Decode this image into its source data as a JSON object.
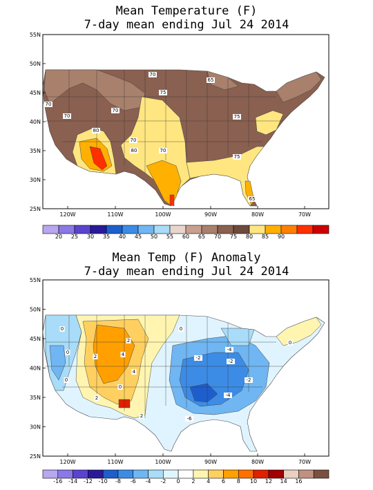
{
  "maps": [
    {
      "title_line1": "Mean Temperature (F)",
      "title_line2": "7-day mean ending Jul 24 2014",
      "lat_labels": [
        "55N",
        "50N",
        "45N",
        "40N",
        "35N",
        "30N",
        "25N"
      ],
      "lon_labels": [
        "120W",
        "110W",
        "100W",
        "90W",
        "80W",
        "70W"
      ],
      "colorbar": {
        "colors": [
          "#b8a6f0",
          "#8a78e6",
          "#5a44cf",
          "#2a1a9a",
          "#1e5ecc",
          "#3c8ce6",
          "#6fb6f2",
          "#a8dcf8",
          "#e8d6cc",
          "#c9a090",
          "#a8806c",
          "#8a6050",
          "#6e4a3c",
          "#ffe680",
          "#ffb000",
          "#ff8000",
          "#ff3000",
          "#cc0000"
        ],
        "labels": [
          "20",
          "25",
          "30",
          "35",
          "40",
          "45",
          "50",
          "55",
          "60",
          "65",
          "70",
          "75",
          "80",
          "85",
          "90"
        ]
      },
      "contour_labels": [
        "70",
        "65",
        "70",
        "75",
        "70",
        "70",
        "80",
        "70",
        "75",
        "80",
        "70",
        "75",
        "65"
      ]
    },
    {
      "title_line1": "Mean Temp (F) Anomaly",
      "title_line2": "7-day mean ending Jul 24 2014",
      "lat_labels": [
        "55N",
        "50N",
        "45N",
        "40N",
        "35N",
        "30N",
        "25N"
      ],
      "lon_labels": [
        "120W",
        "110W",
        "100W",
        "90W",
        "80W",
        "70W"
      ],
      "colorbar": {
        "colors": [
          "#b8a6f0",
          "#8a78e6",
          "#5a44cf",
          "#2a1a9a",
          "#1e5ecc",
          "#3c8ce6",
          "#6fb6f2",
          "#a8dcf8",
          "#e0f4ff",
          "#ffffff",
          "#fff5b0",
          "#ffd060",
          "#ffa000",
          "#ff7000",
          "#e02000",
          "#a00000",
          "#e8d0c0",
          "#c09080",
          "#7a5040"
        ],
        "labels": [
          "-16",
          "-14",
          "-12",
          "-10",
          "-8",
          "-6",
          "-4",
          "-2",
          "0",
          "2",
          "4",
          "6",
          "8",
          "10",
          "12",
          "14",
          "16"
        ]
      },
      "contour_labels": [
        "0",
        "0",
        "0",
        "2",
        "4",
        "4",
        "2",
        "0",
        "2",
        "-2",
        "-4",
        "-2",
        "-6",
        "-4",
        "-2",
        "0",
        "0",
        "2"
      ]
    }
  ]
}
